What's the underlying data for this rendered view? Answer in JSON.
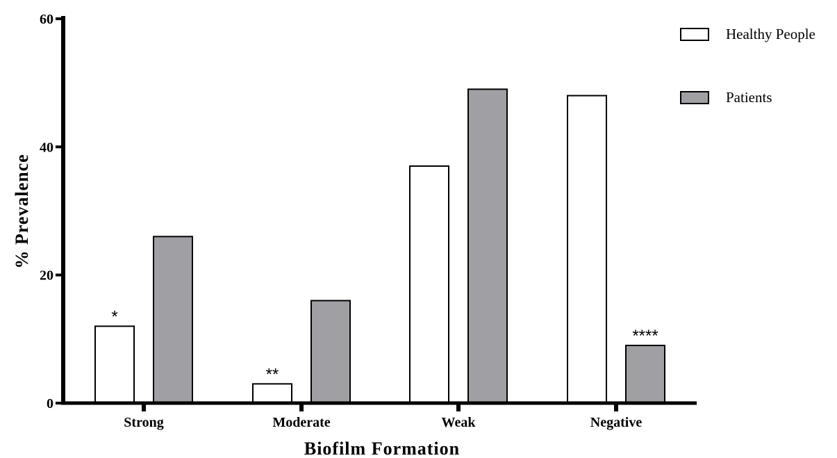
{
  "chart_data": {
    "type": "bar",
    "categories": [
      "Strong",
      "Moderate",
      "Weak",
      "Negative"
    ],
    "series": [
      {
        "name": "Healthy People",
        "values": [
          12,
          3,
          37,
          48
        ],
        "color": "#ffffff"
      },
      {
        "name": "Patients",
        "values": [
          26,
          16,
          49,
          9
        ],
        "color": "#a0a0a4"
      }
    ],
    "annotations": [
      {
        "category": "Strong",
        "series": "Healthy People",
        "text": "*"
      },
      {
        "category": "Moderate",
        "series": "Healthy People",
        "text": "**"
      },
      {
        "category": "Negative",
        "series": "Patients",
        "text": "****"
      }
    ],
    "title": "",
    "xlabel": "Biofilm Formation",
    "ylabel": "% Prevalence",
    "ylim": [
      0,
      60
    ],
    "yticks": [
      0,
      20,
      40,
      60
    ],
    "grid": false,
    "legend_position": "top-right"
  }
}
